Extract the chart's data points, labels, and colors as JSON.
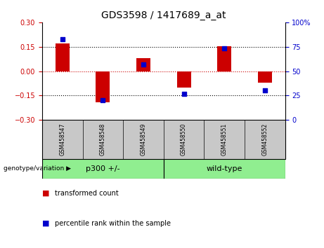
{
  "title": "GDS3598 / 1417689_a_at",
  "samples": [
    "GSM458547",
    "GSM458548",
    "GSM458549",
    "GSM458550",
    "GSM458551",
    "GSM458552"
  ],
  "red_bars": [
    0.17,
    -0.19,
    0.08,
    -0.1,
    0.155,
    -0.07
  ],
  "blue_pct": [
    83,
    20,
    57,
    27,
    73,
    30
  ],
  "ylim_left": [
    -0.3,
    0.3
  ],
  "ylim_right": [
    0,
    100
  ],
  "yticks_left": [
    -0.3,
    -0.15,
    0,
    0.15,
    0.3
  ],
  "yticks_right": [
    0,
    25,
    50,
    75,
    100
  ],
  "hlines_black": [
    -0.15,
    0.15
  ],
  "hline_red": 0,
  "groups": [
    {
      "label": "p300 +/-",
      "indices": [
        0,
        1,
        2
      ]
    },
    {
      "label": "wild-type",
      "indices": [
        3,
        4,
        5
      ]
    }
  ],
  "group_label_prefix": "genotype/variation ▶",
  "bar_color": "#cc0000",
  "blue_color": "#0000cc",
  "bar_width": 0.35,
  "legend_red": "transformed count",
  "legend_blue": "percentile rank within the sample",
  "tick_label_color_left": "#cc0000",
  "tick_label_color_right": "#0000cc",
  "bg_plot": "#ffffff",
  "bg_label": "#c8c8c8",
  "bg_group": "#90ee90",
  "figsize": [
    4.61,
    3.54
  ],
  "dpi": 100
}
